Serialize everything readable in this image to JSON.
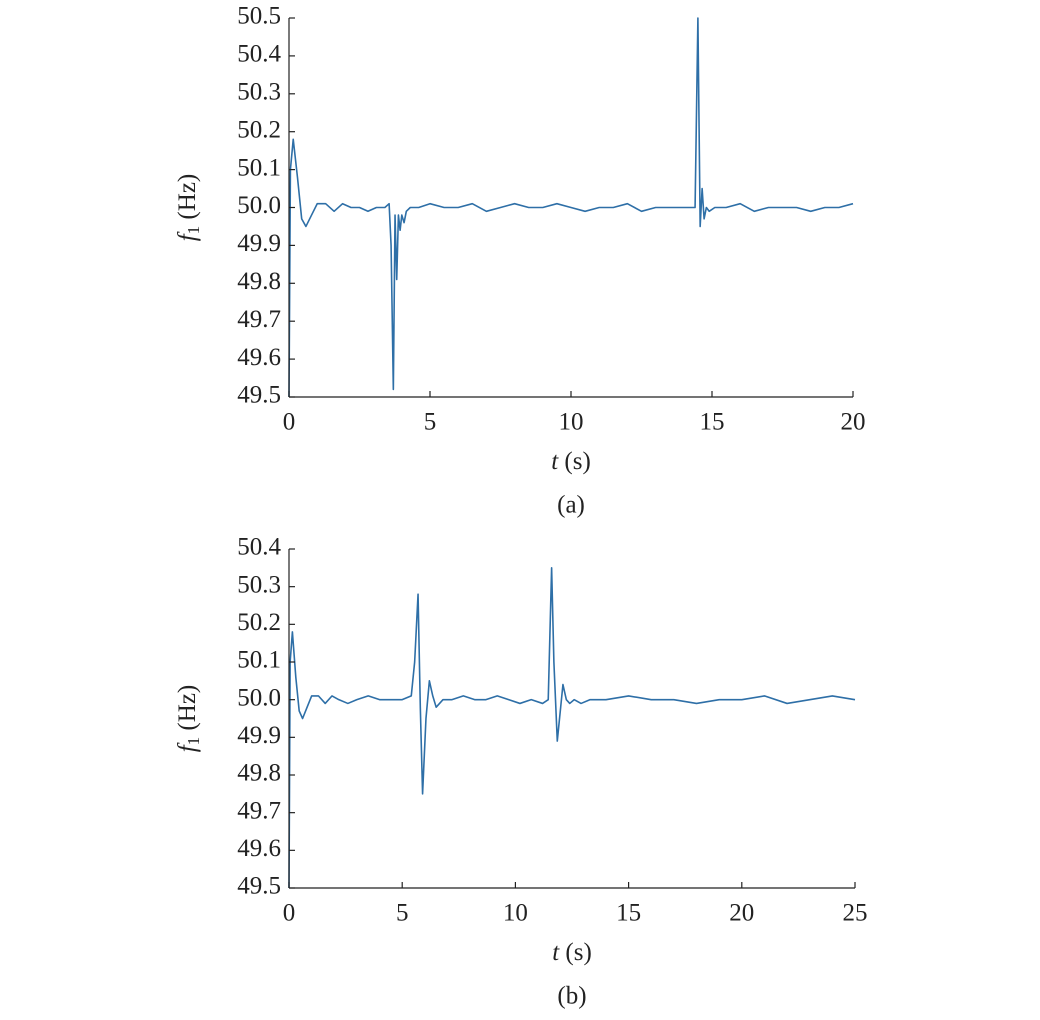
{
  "chart_data": [
    {
      "type": "line",
      "caption": "(a)",
      "xlabel": "t (s)",
      "ylabel": "f1 (Hz)",
      "xlim": [
        0,
        20
      ],
      "xticks": [
        0,
        5,
        10,
        15,
        20
      ],
      "ylim": [
        49.5,
        50.5
      ],
      "yticks": [
        49.5,
        49.6,
        49.7,
        49.8,
        49.9,
        {
          "value": 50,
          "label": "50.0"
        },
        50.1,
        50.2,
        50.3,
        50.4,
        50.5
      ],
      "x": [
        0,
        0.05,
        0.15,
        0.3,
        0.45,
        0.6,
        0.8,
        1.0,
        1.3,
        1.6,
        1.9,
        2.2,
        2.5,
        2.8,
        3.1,
        3.4,
        3.55,
        3.62,
        3.7,
        3.76,
        3.82,
        3.88,
        3.94,
        4.0,
        4.08,
        4.16,
        4.3,
        4.6,
        5.0,
        5.5,
        6.0,
        6.5,
        7.0,
        7.5,
        8.0,
        8.5,
        9.0,
        9.5,
        10.0,
        10.5,
        11.0,
        11.5,
        12.0,
        12.5,
        13.0,
        13.5,
        14.0,
        14.4,
        14.5,
        14.58,
        14.65,
        14.72,
        14.8,
        14.9,
        15.1,
        15.5,
        16.0,
        16.5,
        17.0,
        17.5,
        18.0,
        18.5,
        19.0,
        19.5,
        20.0
      ],
      "series": [
        {
          "name": "f1",
          "color": "#2e6fa7",
          "values": [
            49.5,
            50.1,
            50.18,
            50.08,
            49.97,
            49.95,
            49.98,
            50.01,
            50.01,
            49.99,
            50.01,
            50.0,
            50.0,
            49.99,
            50.0,
            50.0,
            50.01,
            49.9,
            49.52,
            49.98,
            49.81,
            49.98,
            49.94,
            49.98,
            49.96,
            49.99,
            50.0,
            50.0,
            50.01,
            50.0,
            50.0,
            50.01,
            49.99,
            50.0,
            50.01,
            50.0,
            50.0,
            50.01,
            50.0,
            49.99,
            50.0,
            50.0,
            50.01,
            49.99,
            50.0,
            50.0,
            50.0,
            50.0,
            50.5,
            49.95,
            50.05,
            49.97,
            50.0,
            49.99,
            50.0,
            50.0,
            50.01,
            49.99,
            50.0,
            50.0,
            50.0,
            49.99,
            50.0,
            50.0,
            50.01
          ]
        }
      ]
    },
    {
      "type": "line",
      "caption": "(b)",
      "xlabel": "t (s)",
      "ylabel": "f1 (Hz)",
      "xlim": [
        0,
        25
      ],
      "xticks": [
        0,
        5,
        10,
        15,
        20,
        25
      ],
      "ylim": [
        49.5,
        50.4
      ],
      "yticks": [
        49.5,
        49.6,
        49.7,
        49.8,
        49.9,
        {
          "value": 50,
          "label": "50.0"
        },
        50.1,
        50.2,
        50.3,
        50.4
      ],
      "x": [
        0,
        0.05,
        0.15,
        0.3,
        0.45,
        0.6,
        0.8,
        1.0,
        1.3,
        1.6,
        1.9,
        2.2,
        2.6,
        3.0,
        3.5,
        4.0,
        4.5,
        5.0,
        5.4,
        5.55,
        5.7,
        5.8,
        5.9,
        6.05,
        6.2,
        6.35,
        6.5,
        6.8,
        7.2,
        7.7,
        8.2,
        8.7,
        9.2,
        9.7,
        10.2,
        10.7,
        11.2,
        11.45,
        11.6,
        11.7,
        11.85,
        12.0,
        12.1,
        12.25,
        12.4,
        12.6,
        12.9,
        13.3,
        14.0,
        15.0,
        16.0,
        17.0,
        18.0,
        19.0,
        20.0,
        21.0,
        22.0,
        23.0,
        24.0,
        25.0
      ],
      "series": [
        {
          "name": "f1",
          "color": "#2e6fa7",
          "values": [
            49.5,
            50.1,
            50.18,
            50.06,
            49.97,
            49.95,
            49.98,
            50.01,
            50.01,
            49.99,
            50.01,
            50.0,
            49.99,
            50.0,
            50.01,
            50.0,
            50.0,
            50.0,
            50.01,
            50.1,
            50.28,
            49.98,
            49.75,
            49.95,
            50.05,
            50.01,
            49.98,
            50.0,
            50.0,
            50.01,
            50.0,
            50.0,
            50.01,
            50.0,
            49.99,
            50.0,
            49.99,
            50.0,
            50.35,
            50.1,
            49.89,
            49.98,
            50.04,
            50.0,
            49.99,
            50.0,
            49.99,
            50.0,
            50.0,
            50.01,
            50.0,
            50.0,
            49.99,
            50.0,
            50.0,
            50.01,
            49.99,
            50.0,
            50.01,
            50.0
          ]
        }
      ]
    }
  ]
}
